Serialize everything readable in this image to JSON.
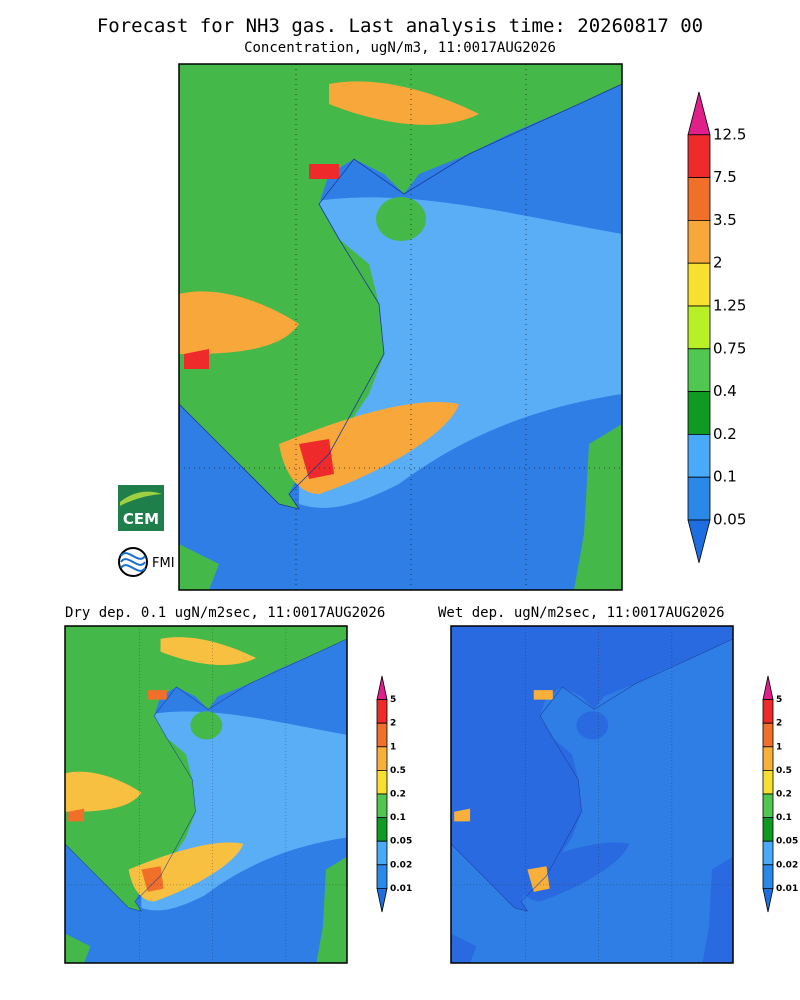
{
  "header": {
    "title": "Forecast for NH3 gas. Last analysis time: 20260817 00",
    "subtitle": "Concentration, ugN/m3, 11:0017AUG2026"
  },
  "main_colorbar": {
    "labels": [
      "12.5",
      "7.5",
      "3.5",
      "2",
      "1.25",
      "0.75",
      "0.4",
      "0.2",
      "0.1",
      "0.05"
    ],
    "colors": [
      "#e0208a",
      "#ee2a2a",
      "#f0702a",
      "#f8a83a",
      "#f8e030",
      "#b8f028",
      "#50c850",
      "#0f9a22",
      "#48aaf8",
      "#2a88e8",
      "#1e6ee0"
    ]
  },
  "panels": [
    {
      "title": "Dry dep. 0.1 ugN/m2sec, 11:0017AUG2026"
    },
    {
      "title": "Wet dep. ugN/m2sec, 11:0017AUG2026"
    }
  ],
  "small_colorbar": {
    "labels": [
      "5",
      "2",
      "1",
      "0.5",
      "0.2",
      "0.1",
      "0.05",
      "0.02",
      "0.01"
    ],
    "colors": [
      "#e0208a",
      "#ee2a2a",
      "#f0702a",
      "#f8b03a",
      "#f8e030",
      "#50c850",
      "#0f9a22",
      "#48aaf8",
      "#2a88e8",
      "#1e6ee0"
    ]
  },
  "logos": {
    "cem": "CEM",
    "fmi": "FMI"
  }
}
